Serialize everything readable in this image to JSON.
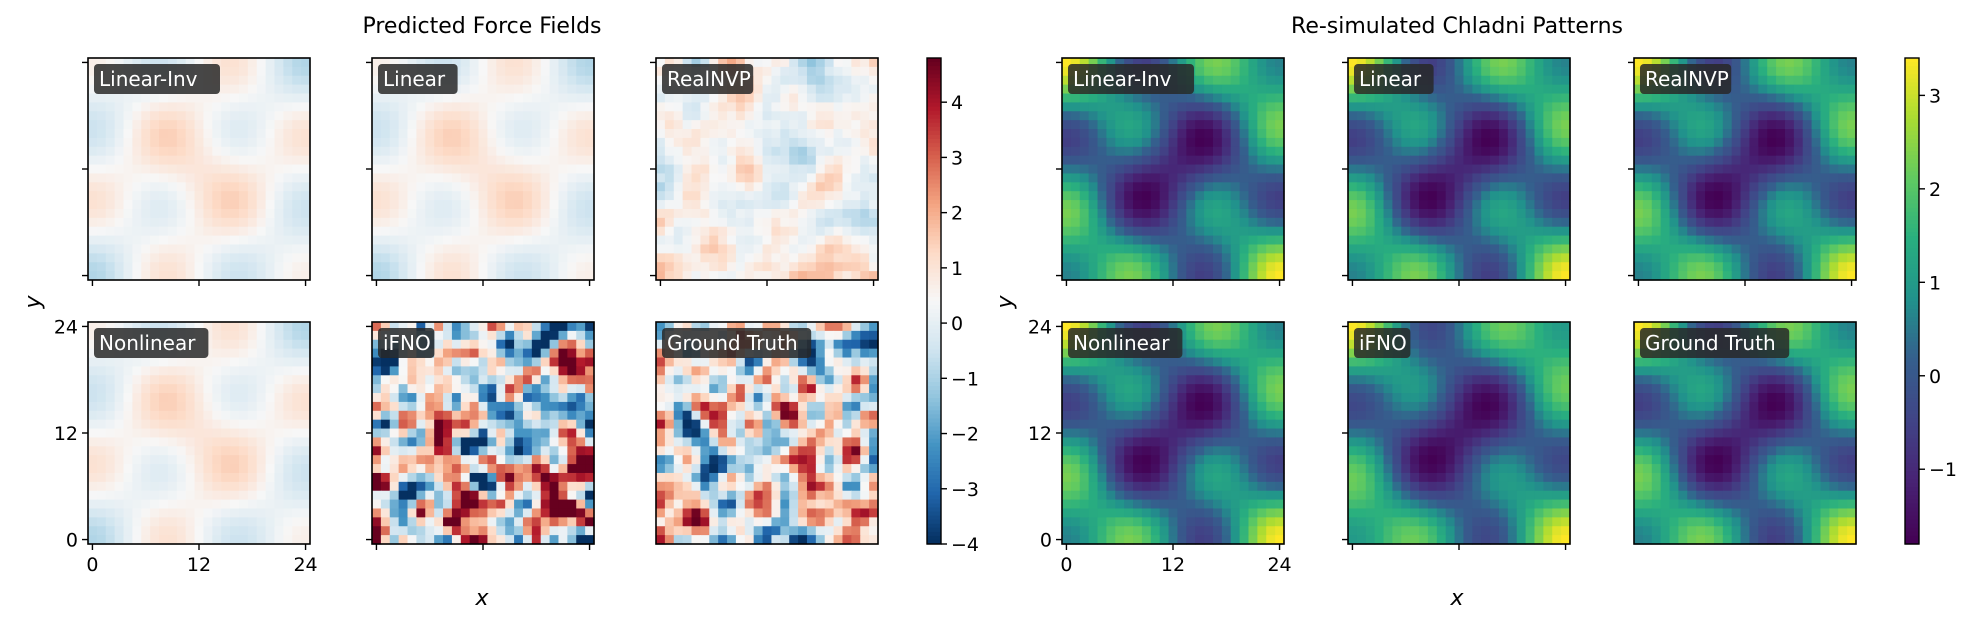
{
  "chart_data": [
    {
      "type": "heatmap",
      "title": "Predicted Force Fields",
      "xlabel": "x",
      "ylabel": "y",
      "grid_size": 25,
      "x_ticks": [
        0,
        12,
        24
      ],
      "y_ticks": [
        0,
        12,
        24
      ],
      "x_tick_labels": [
        "0",
        "12",
        "24"
      ],
      "y_tick_labels": [
        "0",
        "12",
        "24"
      ],
      "panels": [
        "Linear-Inv",
        "Linear",
        "RealNVP",
        "Nonlinear",
        "iFNO",
        "Ground Truth"
      ],
      "colormap": "RdBu_r",
      "colorbar": {
        "vmin": -4,
        "vmax": 4.8,
        "ticks": [
          -4,
          -3,
          -2,
          -1,
          0,
          1,
          2,
          3,
          4
        ]
      }
    },
    {
      "type": "heatmap",
      "title": "Re-simulated Chladni Patterns",
      "xlabel": "x",
      "ylabel": "y",
      "grid_size": 25,
      "x_ticks": [
        0,
        12,
        24
      ],
      "y_ticks": [
        0,
        12,
        24
      ],
      "x_tick_labels": [
        "0",
        "12",
        "24"
      ],
      "y_tick_labels": [
        "0",
        "12",
        "24"
      ],
      "panels": [
        "Linear-Inv",
        "Linear",
        "RealNVP",
        "Nonlinear",
        "iFNO",
        "Ground Truth"
      ],
      "colormap": "viridis",
      "colorbar": {
        "vmin": -1.8,
        "vmax": 3.4,
        "ticks": [
          -1,
          0,
          1,
          2,
          3
        ]
      }
    }
  ]
}
